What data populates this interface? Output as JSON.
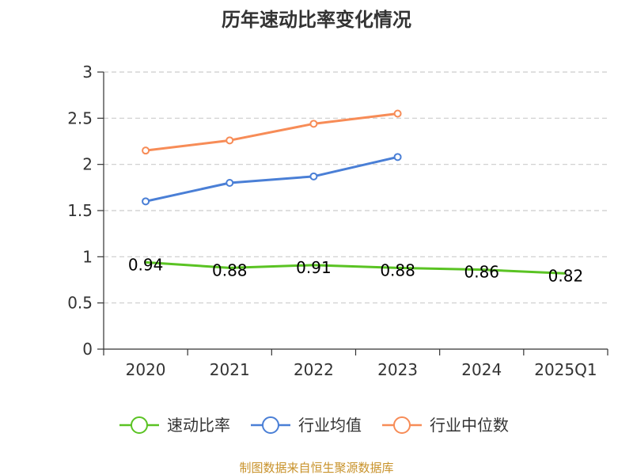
{
  "chart_data": {
    "type": "line",
    "title": "历年速动比率变化情况",
    "categories": [
      "2020",
      "2021",
      "2022",
      "2023",
      "2024",
      "2025Q1"
    ],
    "ylim": [
      0,
      3
    ],
    "yticks": [
      0,
      0.5,
      1,
      1.5,
      2,
      2.5,
      3
    ],
    "ytick_labels": [
      "0",
      "0.5",
      "1",
      "1.5",
      "2",
      "2.5",
      "3"
    ],
    "grid": true,
    "legend_position": "bottom",
    "series": [
      {
        "name": "速动比率",
        "color": "#5ac323",
        "values": [
          0.94,
          0.88,
          0.91,
          0.88,
          0.86,
          0.82
        ],
        "labels": [
          "0.94",
          "0.88",
          "0.91",
          "0.88",
          "0.86",
          "0.82"
        ],
        "show_labels": true
      },
      {
        "name": "行业均值",
        "color": "#4a7fd6",
        "values": [
          1.6,
          1.8,
          1.87,
          2.08,
          null,
          null
        ],
        "show_labels": false
      },
      {
        "name": "行业中位数",
        "color": "#f78c57",
        "values": [
          2.15,
          2.26,
          2.44,
          2.55,
          null,
          null
        ],
        "show_labels": false
      }
    ]
  },
  "source": "制图数据来自恒生聚源数据库"
}
